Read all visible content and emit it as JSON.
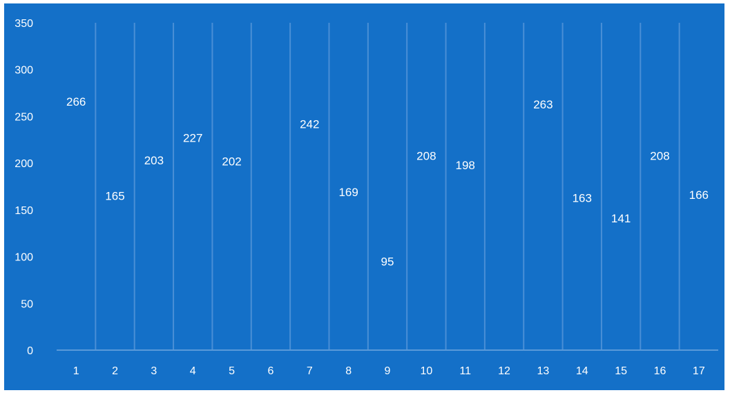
{
  "chart_data": {
    "type": "scatter",
    "title": "",
    "xlabel": "",
    "ylabel": "",
    "categories": [
      "1",
      "2",
      "3",
      "4",
      "5",
      "6",
      "7",
      "8",
      "9",
      "10",
      "11",
      "12",
      "13",
      "14",
      "15",
      "16",
      "17"
    ],
    "values": [
      266,
      165,
      203,
      227,
      202,
      null,
      242,
      169,
      95,
      208,
      198,
      null,
      263,
      163,
      141,
      208,
      166
    ],
    "ylim": [
      0,
      350
    ],
    "yticks": [
      "0",
      "50",
      "100",
      "150",
      "200",
      "250",
      "300",
      "350"
    ],
    "grid": "vertical",
    "legend": "none",
    "markers": "data labels only"
  },
  "colors": {
    "background": "#1470c8",
    "gridline": "#4a8fd6",
    "axis": "#5a9ad9",
    "text": "#ffffff"
  }
}
